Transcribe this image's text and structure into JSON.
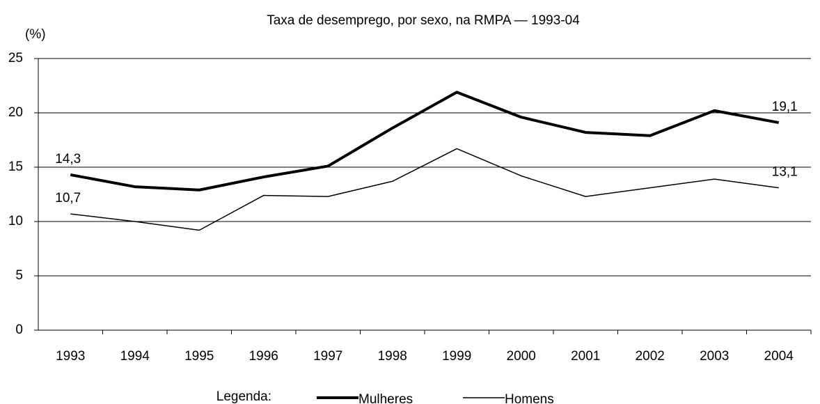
{
  "chart_data": {
    "type": "line",
    "title": "Taxa de desemprego, por sexo, na RMPA  — 1993-04",
    "y_label": "(%)",
    "categories": [
      "1993",
      "1994",
      "1995",
      "1996",
      "1997",
      "1998",
      "1999",
      "2000",
      "2001",
      "2002",
      "2003",
      "2004"
    ],
    "series": [
      {
        "name": "Mulheres",
        "color": "#000000",
        "width": 4,
        "values": [
          14.3,
          13.2,
          12.9,
          14.1,
          15.1,
          18.6,
          21.9,
          19.6,
          18.2,
          17.9,
          20.2,
          19.1
        ],
        "value_labels": [
          "14,3",
          null,
          null,
          null,
          null,
          null,
          null,
          null,
          null,
          null,
          null,
          "19,1"
        ]
      },
      {
        "name": "Homens",
        "color": "#000000",
        "width": 1.5,
        "values": [
          10.7,
          10.0,
          9.2,
          12.4,
          12.3,
          13.7,
          16.7,
          14.2,
          12.3,
          13.1,
          13.9,
          13.1
        ],
        "value_labels": [
          "10,7",
          null,
          null,
          null,
          null,
          null,
          null,
          null,
          null,
          null,
          null,
          "13,1"
        ]
      }
    ],
    "ylim": [
      0,
      25
    ],
    "yticks": [
      0,
      5,
      10,
      15,
      20,
      25
    ],
    "grid": true,
    "legend_title": "Legenda:",
    "legend_position": "bottom"
  }
}
